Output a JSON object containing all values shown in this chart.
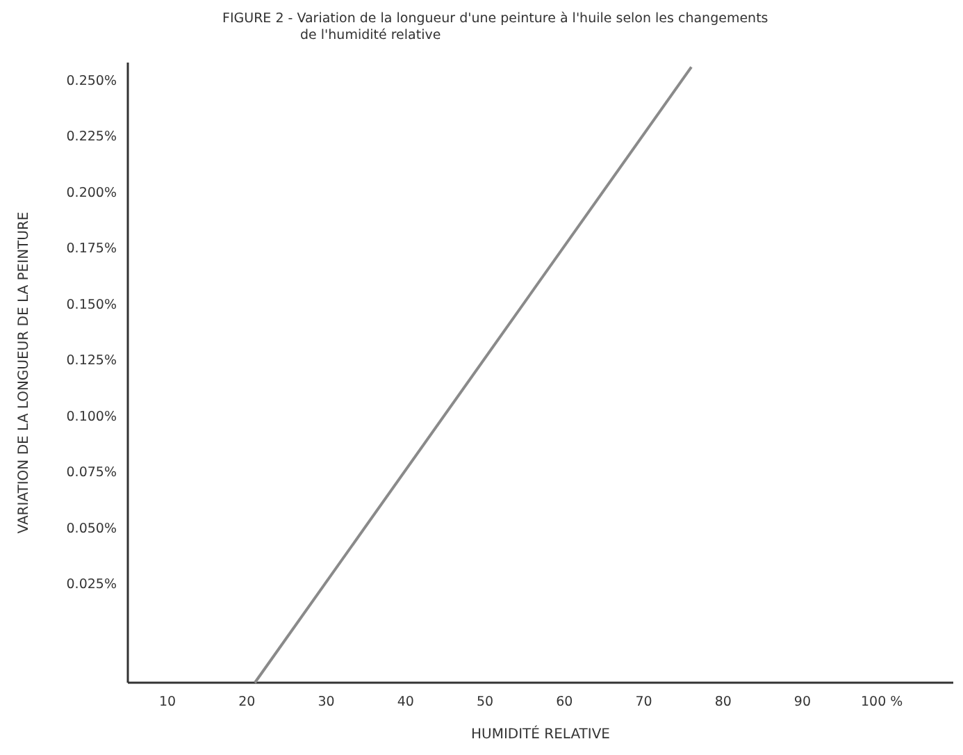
{
  "chart_data": {
    "type": "line",
    "title": "FIGURE 2 - Variation de la longueur d'une peinture à l'huile selon les changements\nde l'humidité relative",
    "xlabel": "HUMIDITÉ RELATIVE",
    "ylabel": "VARIATION DE LA LONGUEUR DE LA PEINTURE",
    "x": [
      21,
      76
    ],
    "series": [
      {
        "color": "#8a8a8a",
        "values": [
          -0.019,
          0.256
        ]
      }
    ],
    "xlim": [
      5,
      109
    ],
    "xticks": [
      10,
      20,
      30,
      40,
      50,
      60,
      70,
      80,
      90,
      {
        "value": 100,
        "label": "100 %"
      }
    ],
    "ylim": [
      -0.019,
      0.258
    ],
    "yticks": [
      {
        "value": 0.025,
        "label": "0.025%"
      },
      {
        "value": 0.05,
        "label": "0.050%"
      },
      {
        "value": 0.075,
        "label": "0.075%"
      },
      {
        "value": 0.1,
        "label": "0.100%"
      },
      {
        "value": 0.125,
        "label": "0.125%"
      },
      {
        "value": 0.15,
        "label": "0.150%"
      },
      {
        "value": 0.175,
        "label": "0.175%"
      },
      {
        "value": 0.2,
        "label": "0.200%"
      },
      {
        "value": 0.225,
        "label": "0.225%"
      },
      {
        "value": 0.25,
        "label": "0.250%"
      }
    ],
    "grid": false,
    "marker": "none",
    "line_style": "solid"
  }
}
